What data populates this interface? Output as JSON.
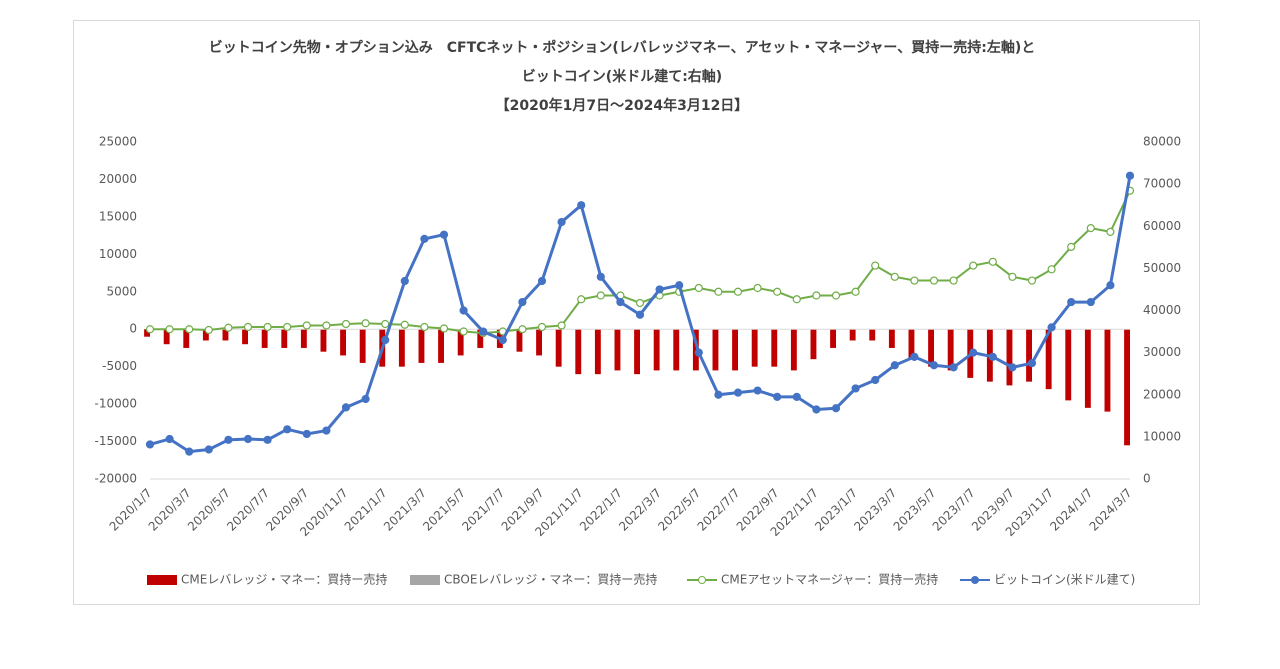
{
  "chart_data": {
    "type": "bar",
    "title": [
      "ビットコイン先物・オプション込み　CFTCネット・ポジション(レバレッジマネー、アセット・マネージャー、買持ー売持:左軸)と",
      "ビットコイン(米ドル建て:右軸)",
      "【2020年1月7日～2024年3月12日】"
    ],
    "categories": [
      "2020/1/7",
      null,
      "2020/3/7",
      null,
      "2020/5/7",
      null,
      "2020/7/7",
      null,
      "2020/9/7",
      null,
      "2020/11/7",
      null,
      "2021/1/7",
      null,
      "2021/3/7",
      null,
      "2021/5/7",
      null,
      "2021/7/7",
      null,
      "2021/9/7",
      null,
      "2021/11/7",
      null,
      "2022/1/7",
      null,
      "2022/3/7",
      null,
      "2022/5/7",
      null,
      "2022/7/7",
      null,
      "2022/9/7",
      null,
      "2022/11/7",
      null,
      "2023/1/7",
      null,
      "2023/3/7",
      null,
      "2023/5/7",
      null,
      "2023/7/7",
      null,
      "2023/9/7",
      null,
      "2023/11/7",
      null,
      "2024/1/7",
      null,
      "2024/3/7"
    ],
    "series": [
      {
        "name": "CMEレバレッジ・マネー：買持ー売持",
        "type": "bar",
        "color": "#c00000",
        "values": [
          -1000,
          -2000,
          -2500,
          -1500,
          -1500,
          -2000,
          -2500,
          -2500,
          -2500,
          -3000,
          -3500,
          -4500,
          -5000,
          -5000,
          -4500,
          -4500,
          -3500,
          -2500,
          -2500,
          -3000,
          -3500,
          -5000,
          -6000,
          -6000,
          -5500,
          -6000,
          -5500,
          -5500,
          -5500,
          -5500,
          -5500,
          -5000,
          -5000,
          -5500,
          -4000,
          -2500,
          -1500,
          -1500,
          -2500,
          -4000,
          -5000,
          -5500,
          -6500,
          -7000,
          -7500,
          -7000,
          -8000,
          -9500,
          -10500,
          -11000,
          -15500
        ]
      },
      {
        "name": "CBOEレバレッジ・マネー：買持ー売持",
        "type": "bar",
        "color": "#a5a5a5",
        "values": [
          0,
          0,
          0,
          0,
          0,
          0,
          0,
          0,
          0,
          0,
          0,
          0,
          0,
          0,
          0,
          0,
          0,
          0,
          0,
          0,
          0,
          0,
          0,
          0,
          0,
          0,
          0,
          0,
          0,
          0,
          0,
          0,
          0,
          0,
          0,
          0,
          0,
          0,
          0,
          0,
          0,
          0,
          0,
          0,
          0,
          0,
          0,
          0,
          0,
          0,
          0
        ]
      },
      {
        "name": "CMEアセットマネージャー：買持ー売持",
        "type": "line",
        "marker": "open",
        "color": "#70ad47",
        "values": [
          0,
          0,
          0,
          -100,
          200,
          300,
          300,
          300,
          500,
          500,
          700,
          800,
          700,
          600,
          300,
          100,
          -300,
          -500,
          -300,
          0,
          300,
          500,
          4000,
          4500,
          4500,
          3500,
          4500,
          5000,
          5500,
          5000,
          5000,
          5500,
          5000,
          4000,
          4500,
          4500,
          5000,
          8500,
          7000,
          6500,
          6500,
          6500,
          8500,
          9000,
          7000,
          6500,
          8000,
          11000,
          13500,
          13000,
          18500
        ]
      },
      {
        "name": "ビットコイン(米ドル建て)",
        "type": "line",
        "marker": "filled",
        "axis": "y2",
        "color": "#4472c4",
        "values": [
          8200,
          9500,
          6500,
          7000,
          9300,
          9500,
          9300,
          11800,
          10700,
          11500,
          17000,
          19000,
          33000,
          47000,
          57000,
          58000,
          40000,
          35000,
          33000,
          42000,
          47000,
          61000,
          65000,
          48000,
          42000,
          39000,
          45000,
          46000,
          30000,
          20000,
          20500,
          21000,
          19500,
          19500,
          16500,
          16800,
          21500,
          23500,
          27000,
          29000,
          27000,
          26500,
          30000,
          29000,
          26500,
          27500,
          36000,
          42000,
          42000,
          46000,
          72000
        ]
      }
    ],
    "ylim": [
      -20000,
      25000
    ],
    "yticks": [
      -20000,
      -15000,
      -10000,
      -5000,
      0,
      5000,
      10000,
      15000,
      20000,
      25000
    ],
    "y2lim": [
      0,
      80000
    ],
    "y2ticks": [
      0,
      10000,
      20000,
      30000,
      40000,
      50000,
      60000,
      70000,
      80000
    ],
    "grid": false,
    "legend": "bottom"
  }
}
